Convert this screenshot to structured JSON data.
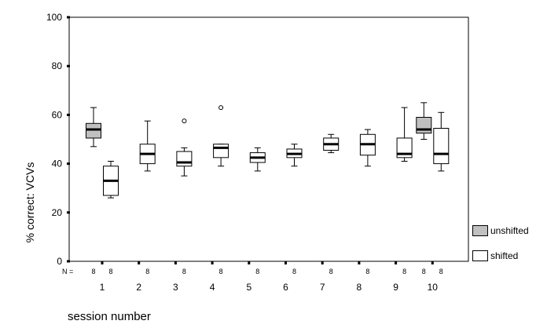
{
  "chart_data": {
    "type": "boxplot",
    "xlabel": "session number",
    "ylabel": "% correct: VCVs",
    "ylim": [
      0,
      100
    ],
    "yticks": [
      0,
      20,
      40,
      60,
      80,
      100
    ],
    "n_label": "N =",
    "grid": false,
    "legend_position": "right",
    "series": [
      {
        "name": "unshifted",
        "color": "#c0c0c0"
      },
      {
        "name": "shifted",
        "color": "#ffffff"
      }
    ],
    "boxes": [
      {
        "session": "1",
        "series": "unshifted",
        "n": "8",
        "min": 47,
        "q1": 50.5,
        "median": 54,
        "q3": 56.5,
        "max": 63,
        "outliers": []
      },
      {
        "session": "1",
        "series": "shifted",
        "n": "8",
        "min": 26,
        "q1": 27,
        "median": 33,
        "q3": 39,
        "max": 41,
        "outliers": []
      },
      {
        "session": "2",
        "series": "shifted",
        "n": "8",
        "min": 37,
        "q1": 40,
        "median": 44,
        "q3": 48,
        "max": 57.5,
        "outliers": []
      },
      {
        "session": "3",
        "series": "shifted",
        "n": "8",
        "min": 35,
        "q1": 39,
        "median": 40.5,
        "q3": 45,
        "max": 46.5,
        "outliers": [
          57.5
        ]
      },
      {
        "session": "4",
        "series": "shifted",
        "n": "8",
        "min": 39,
        "q1": 42.5,
        "median": 46.5,
        "q3": 48,
        "max": 48,
        "outliers": [
          63
        ]
      },
      {
        "session": "5",
        "series": "shifted",
        "n": "8",
        "min": 37,
        "q1": 40.5,
        "median": 42.5,
        "q3": 44.5,
        "max": 46.5,
        "outliers": []
      },
      {
        "session": "6",
        "series": "shifted",
        "n": "8",
        "min": 39,
        "q1": 42.5,
        "median": 44,
        "q3": 46,
        "max": 48,
        "outliers": []
      },
      {
        "session": "7",
        "series": "shifted",
        "n": "8",
        "min": 44.5,
        "q1": 45.5,
        "median": 48,
        "q3": 50.5,
        "max": 52,
        "outliers": []
      },
      {
        "session": "8",
        "series": "shifted",
        "n": "8",
        "min": 39,
        "q1": 43.5,
        "median": 48,
        "q3": 52,
        "max": 54,
        "outliers": []
      },
      {
        "session": "9",
        "series": "shifted",
        "n": "8",
        "min": 41,
        "q1": 42.5,
        "median": 44,
        "q3": 50.5,
        "max": 63,
        "outliers": []
      },
      {
        "session": "10",
        "series": "unshifted",
        "n": "8",
        "min": 50,
        "q1": 52.5,
        "median": 54,
        "q3": 59,
        "max": 65,
        "outliers": []
      },
      {
        "session": "10",
        "series": "shifted",
        "n": "8",
        "min": 37,
        "q1": 40,
        "median": 44,
        "q3": 54.5,
        "max": 61,
        "outliers": []
      }
    ]
  }
}
